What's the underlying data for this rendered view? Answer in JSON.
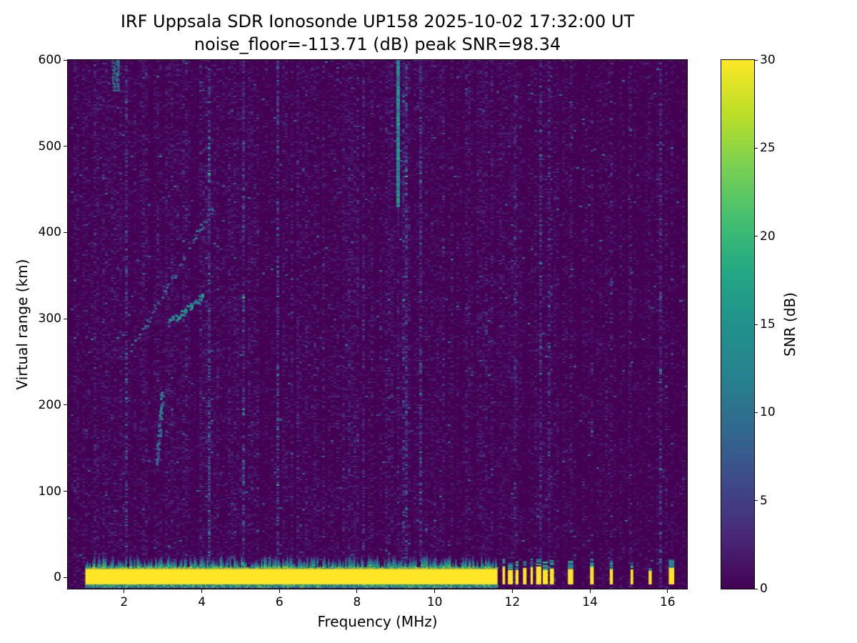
{
  "chart_data": {
    "type": "heatmap",
    "title": "IRF Uppsala SDR Ionosonde UP158 2025-10-02 17:32:00  UT",
    "subtitle": "noise_floor=-113.71 (dB) peak SNR=98.34",
    "xlabel": "Frequency (MHz)",
    "ylabel": "Virtual range (km)",
    "colorbar_label": "SNR (dB)",
    "xlim": [
      0.55,
      16.5
    ],
    "ylim": [
      -13,
      600
    ],
    "clim": [
      0,
      30
    ],
    "x_ticks": [
      2,
      4,
      6,
      8,
      10,
      12,
      14,
      16
    ],
    "y_ticks": [
      0,
      100,
      200,
      300,
      400,
      500,
      600
    ],
    "colorbar_ticks": [
      0,
      5,
      10,
      15,
      20,
      25,
      30
    ],
    "grid": false,
    "legend_position": "right-colorbar",
    "colormap": {
      "name": "viridis",
      "stops": [
        [
          0.0,
          "#440154"
        ],
        [
          0.1,
          "#482878"
        ],
        [
          0.2,
          "#3e4989"
        ],
        [
          0.3,
          "#31688e"
        ],
        [
          0.4,
          "#26828e"
        ],
        [
          0.5,
          "#21918c"
        ],
        [
          0.6,
          "#22a884"
        ],
        [
          0.7,
          "#44bf70"
        ],
        [
          0.8,
          "#7ad151"
        ],
        [
          0.9,
          "#bddf26"
        ],
        [
          1.0,
          "#fde725"
        ]
      ]
    },
    "features": {
      "noise_floor_db": -113.71,
      "peak_snr_db": 98.34,
      "background_snr_db": [
        0,
        3
      ],
      "ground_return": {
        "freq_start_mhz": 1.0,
        "freq_end_mhz": 11.62,
        "range_km": [
          -8,
          10
        ],
        "snr_db": 30,
        "fringe_top_km": 28
      },
      "intermittent_bars_mhz": [
        11.78,
        11.95,
        12.12,
        12.32,
        12.5,
        12.68,
        12.85,
        13.02,
        13.5,
        14.05,
        14.55,
        15.08,
        15.55,
        16.1
      ],
      "faint_rfi_stripes_mhz": [
        12.1,
        12.6,
        13.0,
        13.5,
        14.05,
        14.55,
        15.05
      ],
      "rfi_lines": [
        {
          "freq_mhz": 9.05,
          "range_km": [
            430,
            600
          ],
          "snr_db": 13
        }
      ],
      "echo_traces": [
        {
          "f": [
            2.2,
            4.3
          ],
          "r": [
            265,
            430
          ],
          "snr_db": 8
        },
        {
          "f": [
            3.15,
            4.05
          ],
          "r": [
            295,
            325
          ],
          "snr_db": 13
        },
        {
          "f": [
            2.85,
            3.0
          ],
          "r": [
            130,
            215
          ],
          "snr_db": 9
        }
      ],
      "blobs": [
        {
          "f": [
            1.7,
            1.85
          ],
          "r": [
            565,
            600
          ],
          "snr_db": 14
        }
      ]
    }
  }
}
